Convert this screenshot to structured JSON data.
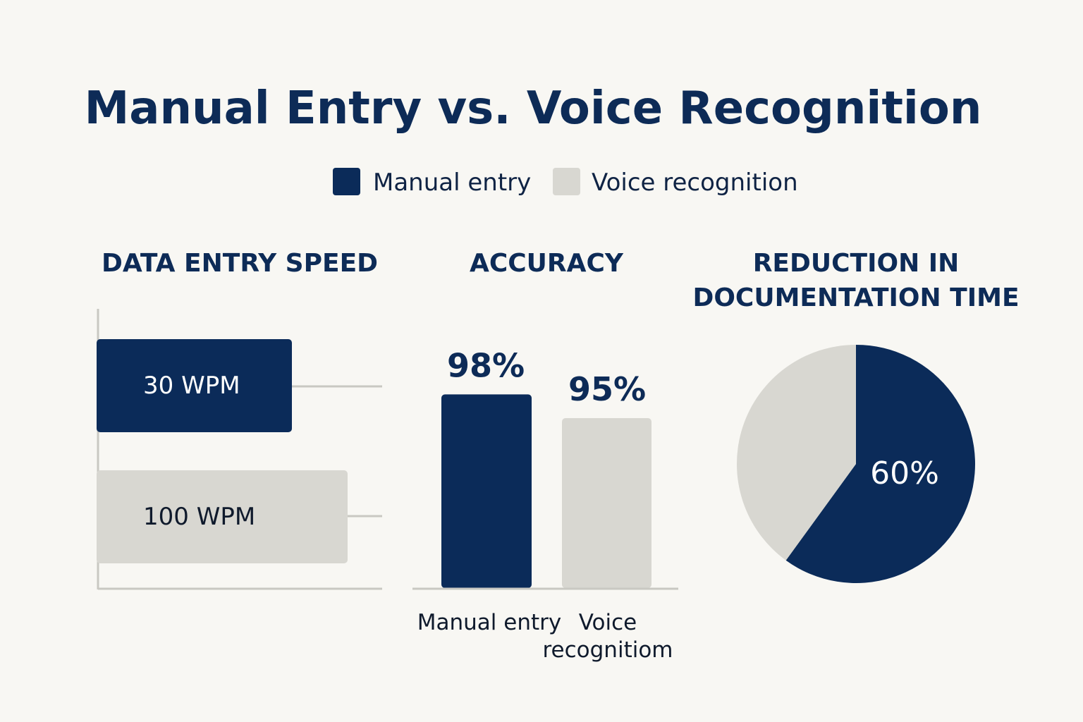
{
  "title": "Manual Entry vs. Voice Recognition",
  "legend": [
    {
      "label": "Manual entry",
      "color": "#0b2b59"
    },
    {
      "label": "Voice recognition",
      "color": "#d8d7d1"
    }
  ],
  "colors": {
    "manual": "#0b2b59",
    "voice": "#d8d7d1",
    "axis": "#c9c8c2",
    "background": "#f8f7f3",
    "title": "#0d2b57"
  },
  "chart_data": [
    {
      "type": "bar",
      "orientation": "horizontal",
      "title": "DATA ENTRY SPEED",
      "categories": [
        "Manual entry",
        "Voice recognition"
      ],
      "values": [
        30,
        100
      ],
      "data_labels": [
        "30 WPM",
        "100 WPM"
      ],
      "unit": "WPM"
    },
    {
      "type": "bar",
      "orientation": "vertical",
      "title": "ACCURACY",
      "categories": [
        "Manual entry",
        "Voice\nrecognitiom"
      ],
      "values": [
        98,
        95
      ],
      "data_labels": [
        "98%",
        "95%"
      ]
    },
    {
      "type": "pie",
      "title": "REDUCTION IN\nDOCUMENTATION TIME",
      "slices": [
        {
          "label": "60%",
          "value": 60,
          "series": "Manual entry"
        },
        {
          "label": "",
          "value": 40,
          "series": "Voice recognition"
        }
      ]
    }
  ]
}
